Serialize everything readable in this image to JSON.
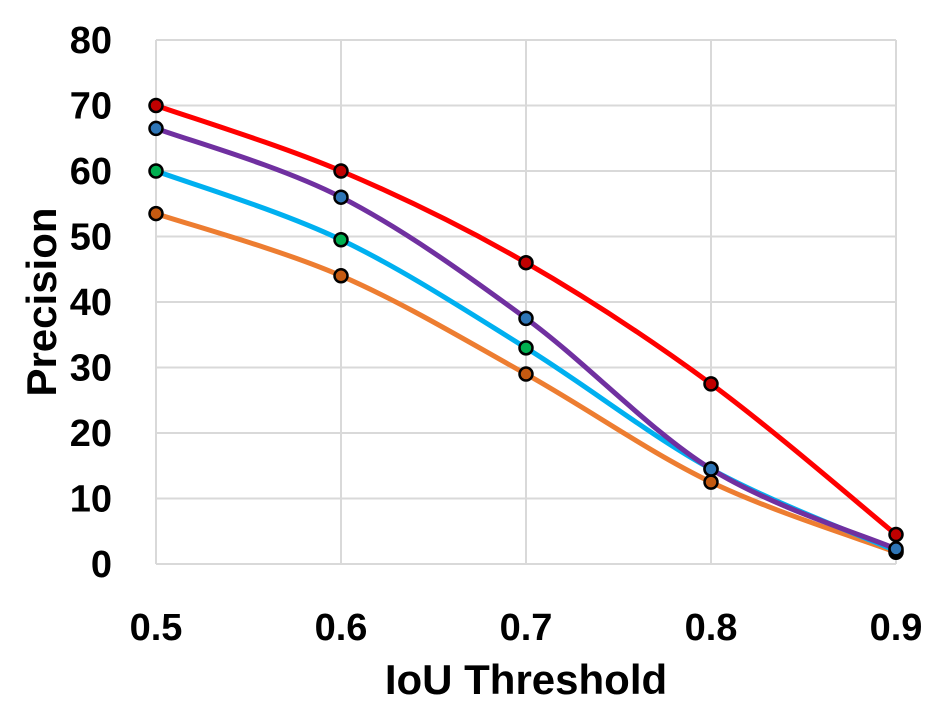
{
  "chart_data": {
    "type": "line",
    "title": "",
    "xlabel": "IoU Threshold",
    "ylabel": "Precision",
    "x": [
      0.5,
      0.6,
      0.7,
      0.8,
      0.9
    ],
    "x_tick_labels": [
      "0.5",
      "0.6",
      "0.7",
      "0.8",
      "0.9"
    ],
    "y_tick_labels": [
      "0",
      "10",
      "20",
      "30",
      "40",
      "50",
      "60",
      "70",
      "80"
    ],
    "xlim": [
      0.5,
      0.9
    ],
    "ylim": [
      0,
      80
    ],
    "grid": true,
    "legend": "none",
    "smooth": true,
    "series": [
      {
        "color": "#ff0000",
        "marker_color": "#c00000",
        "values": [
          70,
          60,
          46,
          27.5,
          4.5
        ]
      },
      {
        "color": "#7030a0",
        "marker_color": "#2e75b6",
        "values": [
          66.5,
          56,
          37.5,
          14.5,
          2.3
        ]
      },
      {
        "color": "#00b0f0",
        "marker_color": "#00b050",
        "values": [
          60,
          49.5,
          33,
          14.5,
          2
        ]
      },
      {
        "color": "#ed7d31",
        "marker_color": "#c55a11",
        "values": [
          53.5,
          44,
          29,
          12.5,
          1.8
        ]
      }
    ]
  }
}
